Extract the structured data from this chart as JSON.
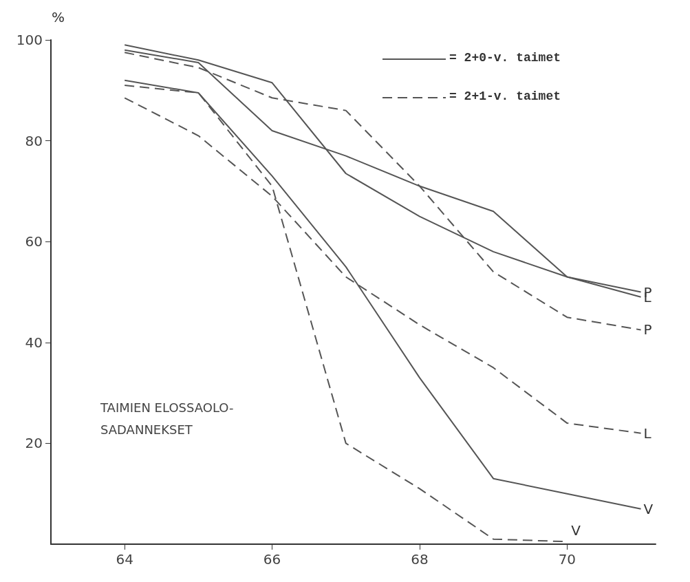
{
  "chart_data": {
    "type": "line",
    "ylabel": "%",
    "x": [
      64,
      65,
      66,
      67,
      68,
      69,
      70,
      71
    ],
    "series": [
      {
        "name": "L",
        "color": "#555555",
        "line_style": "solid",
        "values": [
          99,
          96,
          91.5,
          73.5,
          65,
          58,
          53,
          49
        ]
      },
      {
        "name": "P",
        "color": "#555555",
        "line_style": "solid",
        "values": [
          98,
          95.5,
          82,
          77,
          71,
          66,
          53,
          50
        ]
      },
      {
        "name": "V",
        "color": "#555555",
        "line_style": "solid",
        "values": [
          92,
          89.5,
          73,
          55,
          33,
          13,
          10,
          7
        ]
      },
      {
        "name": "P",
        "color": "#555555",
        "line_style": "dashed",
        "values": [
          97.5,
          94.5,
          88.5,
          86,
          71,
          54,
          45,
          42.5
        ]
      },
      {
        "name": "L",
        "color": "#555555",
        "line_style": "dashed",
        "values": [
          88.5,
          81,
          69,
          53,
          43.5,
          35,
          24,
          22
        ]
      },
      {
        "name": "V",
        "color": "#555555",
        "line_style": "dashed",
        "values": [
          91,
          89.5,
          71,
          20,
          11,
          1,
          0.5,
          null
        ]
      }
    ],
    "xlim": [
      63,
      71.2
    ],
    "xticks": [
      64,
      66,
      68,
      70
    ],
    "ylim": [
      0,
      100
    ],
    "yticks": [
      20,
      40,
      60,
      80,
      100
    ],
    "grid": false,
    "legend": false,
    "marker": "none",
    "annotations": [
      "= 2+0-v. taimet",
      "= 2+1-v. taimet",
      "TAIMIEN ELOSSAOLO-\nSADANNEKSET"
    ]
  }
}
